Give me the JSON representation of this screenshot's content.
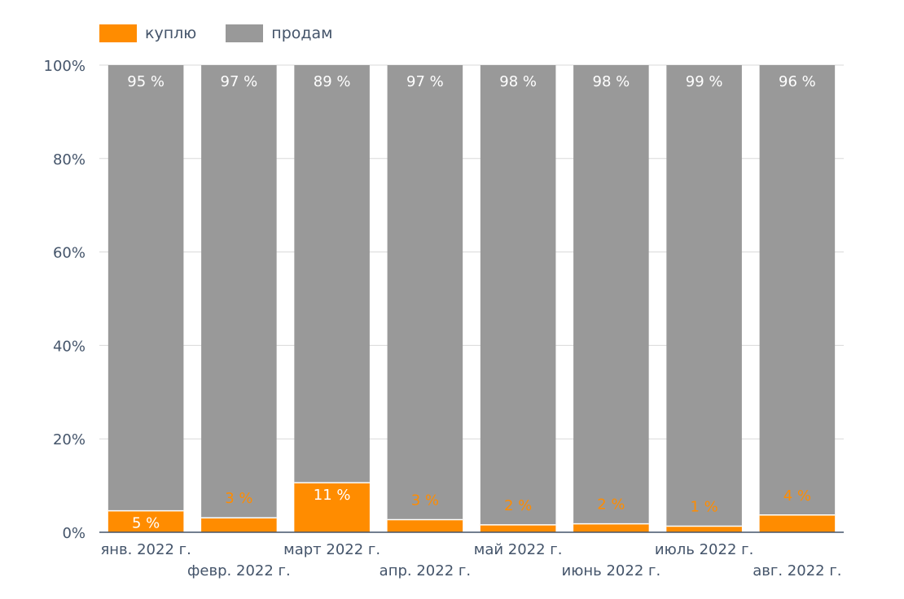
{
  "chart_data": {
    "type": "bar",
    "stacked": true,
    "categories": [
      "янв. 2022 г.",
      "февр. 2022 г.",
      "март 2022 г.",
      "апр. 2022 г.",
      "май 2022 г.",
      "июнь 2022 г.",
      "июль 2022 г.",
      "авг. 2022 г."
    ],
    "series": [
      {
        "name": "куплю",
        "color": "#ff8c00",
        "values": [
          4.6,
          3.1,
          10.6,
          2.7,
          1.6,
          1.8,
          1.3,
          3.7
        ],
        "labels": [
          "5 %",
          "3 %",
          "11 %",
          "3 %",
          "2 %",
          "2 %",
          "1 %",
          "4 %"
        ]
      },
      {
        "name": "продам",
        "color": "#999999",
        "values": [
          95.4,
          96.9,
          89.4,
          97.3,
          98.4,
          98.2,
          98.7,
          96.3
        ],
        "labels": [
          "95 %",
          "97 %",
          "89 %",
          "97 %",
          "98 %",
          "98 %",
          "99 %",
          "96 %"
        ]
      }
    ],
    "ylim": [
      0,
      100
    ],
    "yticks": [
      "0%",
      "20%",
      "40%",
      "60%",
      "80%",
      "100%"
    ],
    "legend_position": "top-left",
    "grid": true
  }
}
